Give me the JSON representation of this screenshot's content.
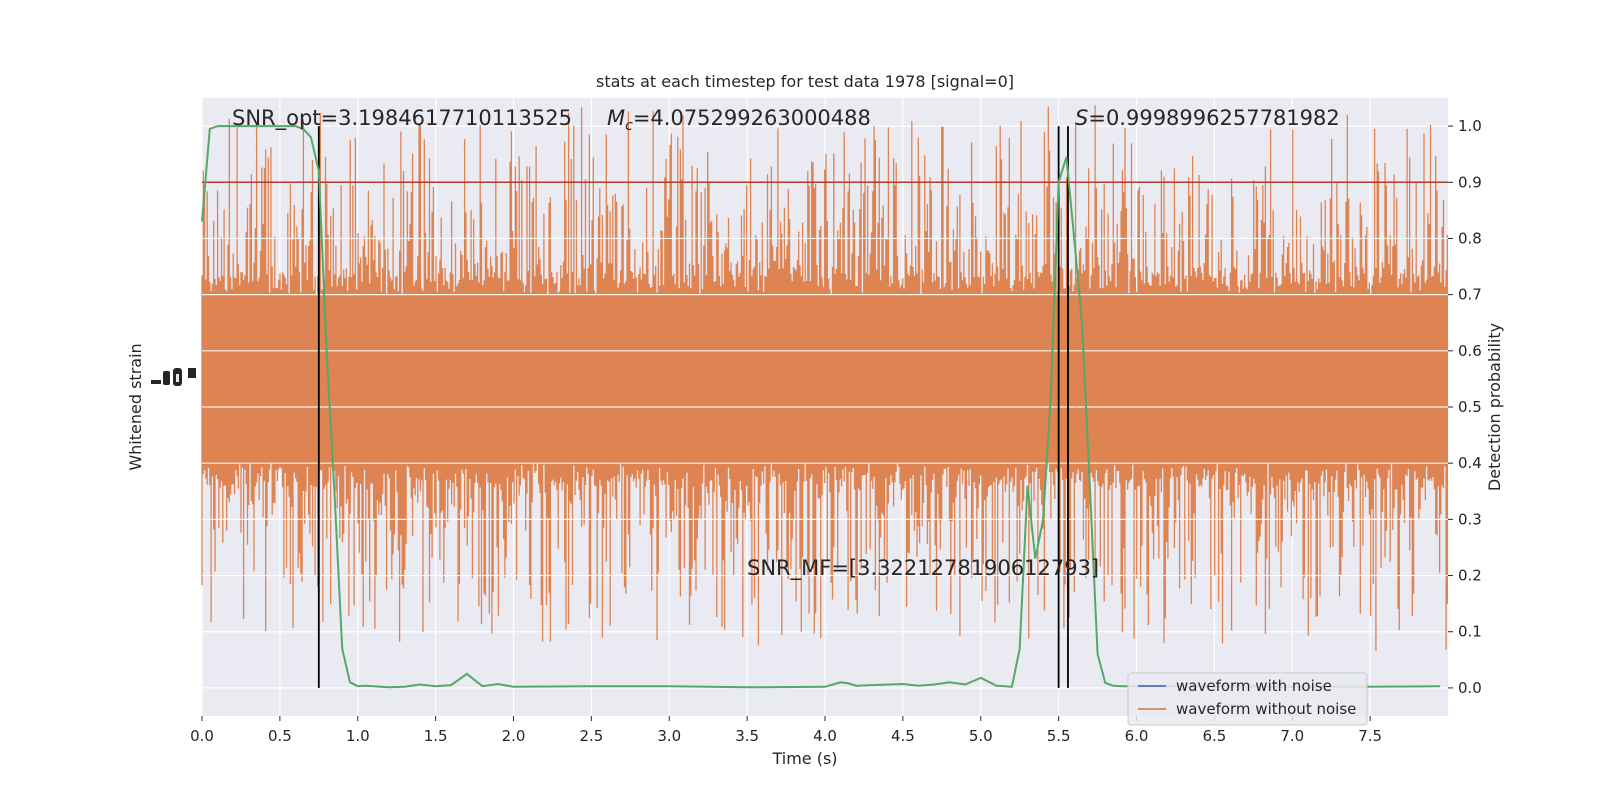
{
  "chart_data": {
    "type": "line",
    "title": "stats at each timestep for test data 1978 [signal=0]",
    "xlabel": "Time (s)",
    "ylabel_left": "Whitened strain",
    "ylabel_right": "Detection probability",
    "xlim": [
      0.0,
      8.0
    ],
    "ylim_right": [
      -0.05,
      1.05
    ],
    "x_ticks": [
      "0.0",
      "0.5",
      "1.0",
      "1.5",
      "2.0",
      "2.5",
      "3.0",
      "3.5",
      "4.0",
      "4.5",
      "5.0",
      "5.5",
      "6.0",
      "6.5",
      "7.0",
      "7.5"
    ],
    "y_ticks_right": [
      "0.0",
      "0.1",
      "0.2",
      "0.3",
      "0.4",
      "0.5",
      "0.6",
      "0.7",
      "0.8",
      "0.9",
      "1.0"
    ],
    "grid": true,
    "legend_position": "lower-right",
    "annotations": {
      "snr_opt": "SNR_opt=3.1984617710113525",
      "mc_symbol": "M",
      "mc_sub": "c",
      "mc_value": "=4.075299263000488",
      "s_symbol": "S",
      "s_value": "=0.9998996257781982",
      "snr_mf": "SNR_MF=[3.3221278190612793]"
    },
    "threshold": {
      "y": 0.9,
      "color": "#b03a2e"
    },
    "vertical_lines_x": [
      0.75,
      5.5,
      5.56
    ],
    "series": [
      {
        "name": "waveform with noise",
        "color": "#4c72b0",
        "style": "strain"
      },
      {
        "name": "waveform without noise",
        "color": "#dd8452",
        "style": "strain",
        "band_center": 0.55,
        "band_core_halfwidth": 0.15,
        "band_spike_max": 0.45
      },
      {
        "name": "",
        "color": "#55a868",
        "style": "probability",
        "x": [
          0.0,
          0.05,
          0.1,
          0.2,
          0.3,
          0.4,
          0.5,
          0.6,
          0.65,
          0.7,
          0.75,
          0.8,
          0.85,
          0.9,
          0.95,
          1.0,
          1.05,
          1.1,
          1.2,
          1.3,
          1.4,
          1.5,
          1.6,
          1.7,
          1.8,
          1.9,
          2.0,
          2.5,
          3.0,
          3.5,
          4.0,
          4.1,
          4.15,
          4.2,
          4.3,
          4.5,
          4.6,
          4.7,
          4.8,
          4.9,
          5.0,
          5.1,
          5.2,
          5.25,
          5.3,
          5.35,
          5.4,
          5.45,
          5.5,
          5.55,
          5.6,
          5.65,
          5.7,
          5.75,
          5.8,
          5.85,
          5.9,
          6.0,
          6.5,
          7.0,
          7.5,
          7.95
        ],
        "y": [
          0.83,
          0.995,
          1.0,
          1.0,
          1.0,
          1.0,
          1.0,
          1.0,
          0.995,
          0.98,
          0.92,
          0.6,
          0.35,
          0.07,
          0.01,
          0.003,
          0.004,
          0.003,
          0.001,
          0.002,
          0.006,
          0.003,
          0.005,
          0.025,
          0.003,
          0.007,
          0.002,
          0.003,
          0.003,
          0.001,
          0.002,
          0.01,
          0.008,
          0.004,
          0.005,
          0.007,
          0.004,
          0.006,
          0.01,
          0.006,
          0.018,
          0.004,
          0.002,
          0.07,
          0.36,
          0.23,
          0.3,
          0.52,
          0.9,
          0.945,
          0.8,
          0.65,
          0.36,
          0.06,
          0.009,
          0.004,
          0.003,
          0.003,
          0.003,
          0.002,
          0.002,
          0.003
        ]
      }
    ]
  }
}
